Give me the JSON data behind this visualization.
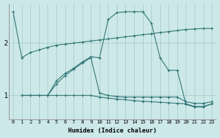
{
  "xlabel": "Humidex (Indice chaleur)",
  "ylabel": "",
  "background_color": "#cce8e8",
  "line_color": "#2d7272",
  "grid_color": "#aacccc",
  "xlim": [
    -0.5,
    23.5
  ],
  "ylim": [
    0.55,
    2.75
  ],
  "yticks": [
    1,
    2
  ],
  "xticks": [
    0,
    1,
    2,
    3,
    4,
    5,
    6,
    7,
    8,
    9,
    10,
    11,
    12,
    13,
    14,
    15,
    16,
    17,
    18,
    19,
    20,
    21,
    22,
    23
  ],
  "line1_x": [
    0,
    1,
    2,
    3,
    4,
    5,
    6,
    7,
    8,
    9,
    10,
    11,
    12,
    13,
    14,
    15,
    16,
    17,
    18,
    19,
    20,
    21,
    22,
    23
  ],
  "line1_y": [
    2.6,
    1.72,
    1.82,
    1.87,
    1.92,
    1.96,
    1.98,
    2.0,
    2.02,
    2.04,
    2.06,
    2.08,
    2.1,
    2.12,
    2.14,
    2.16,
    2.18,
    2.2,
    2.22,
    2.24,
    2.26,
    2.27,
    2.28,
    2.28
  ],
  "line2_x": [
    1,
    2,
    3,
    4,
    5,
    6,
    7,
    8,
    9,
    10,
    11,
    12,
    13,
    14,
    15,
    16,
    17,
    18,
    19,
    20,
    21,
    22,
    23
  ],
  "line2_y": [
    1.0,
    1.0,
    1.0,
    1.0,
    1.28,
    1.42,
    1.52,
    1.64,
    1.74,
    1.72,
    2.45,
    2.58,
    2.6,
    2.6,
    2.6,
    2.38,
    1.72,
    1.48,
    1.48,
    0.83,
    0.78,
    0.78,
    0.84
  ],
  "line3_x": [
    1,
    2,
    3,
    4,
    5,
    6,
    7,
    8,
    9,
    10,
    11,
    12,
    13,
    14,
    15,
    16,
    17,
    18,
    19,
    20,
    21,
    22,
    23
  ],
  "line3_y": [
    1.0,
    1.0,
    1.0,
    1.0,
    1.0,
    1.0,
    1.0,
    1.0,
    1.0,
    0.97,
    0.95,
    0.93,
    0.92,
    0.9,
    0.89,
    0.88,
    0.87,
    0.86,
    0.85,
    0.84,
    0.79,
    0.79,
    0.84
  ],
  "line4_x": [
    4,
    5,
    6,
    7,
    8,
    9,
    10,
    11,
    12,
    13,
    14,
    15,
    16,
    17,
    18,
    19,
    20,
    21,
    22,
    23
  ],
  "line4_y": [
    1.0,
    1.22,
    1.38,
    1.5,
    1.62,
    1.72,
    1.05,
    1.0,
    0.98,
    0.97,
    0.97,
    0.97,
    0.97,
    0.97,
    0.97,
    0.97,
    0.88,
    0.85,
    0.85,
    0.88
  ]
}
